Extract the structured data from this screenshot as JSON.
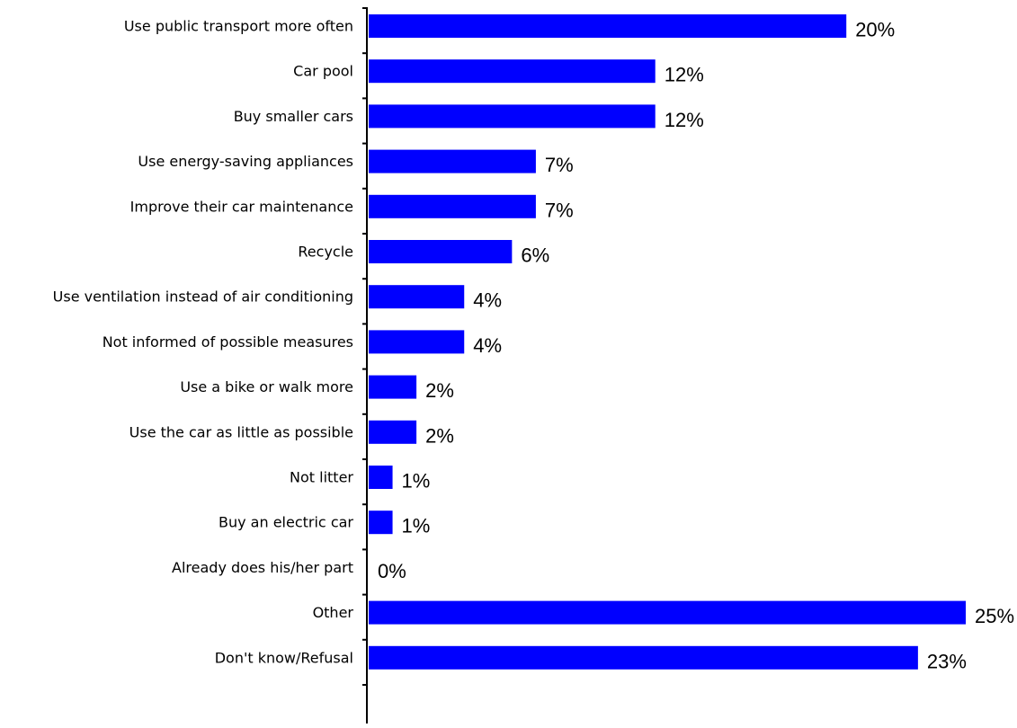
{
  "chart_data": {
    "type": "bar",
    "orientation": "horizontal",
    "categories": [
      "Use public transport more often",
      "Car pool",
      "Buy smaller cars",
      "Use energy-saving appliances",
      "Improve their car maintenance",
      "Recycle",
      "Use ventilation instead of air conditioning",
      "Not informed of possible measures",
      "Use a bike or walk more",
      "Use the car as little as possible",
      "Not litter",
      "Buy an electric car",
      "Already does his/her part",
      "Other",
      "Don't know/Refusal"
    ],
    "values": [
      20,
      12,
      12,
      7,
      7,
      6,
      4,
      4,
      2,
      2,
      1,
      1,
      0,
      25,
      23
    ],
    "value_labels": [
      "20%",
      "12%",
      "12%",
      "7%",
      "7%",
      "6%",
      "4%",
      "4%",
      "2%",
      "2%",
      "1%",
      "1%",
      "0%",
      "25%",
      "23%"
    ],
    "unit": "%",
    "bar_color": "#0000ff",
    "xlim": [
      0,
      25
    ],
    "grid": false,
    "legend": "none"
  }
}
